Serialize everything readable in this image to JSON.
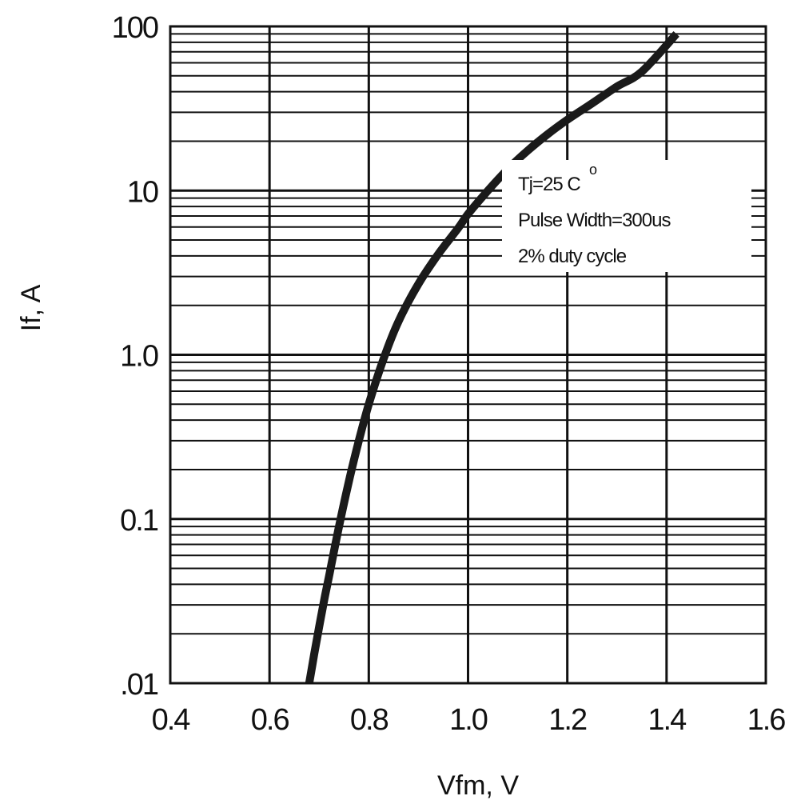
{
  "chart_data": {
    "type": "line",
    "title": "",
    "xlabel": "Vfm, V",
    "ylabel": "If, A",
    "xscale": "linear",
    "yscale": "log",
    "xlim": [
      0.4,
      1.6
    ],
    "ylim": [
      0.01,
      100
    ],
    "grid": true,
    "x_ticks": [
      0.4,
      0.6,
      0.8,
      1.0,
      1.2,
      1.4,
      1.6
    ],
    "x_tick_labels": [
      "0.4",
      "0.6",
      "0.8",
      "1.0",
      "1.2",
      "1.4",
      "1.6"
    ],
    "y_ticks": [
      0.01,
      0.1,
      1,
      10,
      100
    ],
    "y_tick_labels": [
      ".01",
      "0.1",
      "1.0",
      "10",
      "100"
    ],
    "annotation": {
      "lines": [
        "Tj=25 C",
        "Pulse Width=300us",
        "2% duty cycle"
      ],
      "degree_symbol": "o",
      "placement": "upper-right"
    },
    "series": [
      {
        "x": [
          0.68,
          0.69,
          0.7,
          0.71,
          0.72,
          0.74,
          0.76,
          0.78,
          0.8,
          0.83,
          0.86,
          0.9,
          0.94,
          0.98,
          1.0,
          1.04,
          1.08,
          1.12,
          1.16,
          1.2,
          1.25,
          1.3,
          1.35,
          1.42
        ],
        "y": [
          0.01,
          0.015,
          0.022,
          0.032,
          0.045,
          0.09,
          0.17,
          0.3,
          0.5,
          0.95,
          1.6,
          2.7,
          4.1,
          5.9,
          7.2,
          10,
          13.5,
          17.5,
          22,
          27,
          34,
          43,
          53,
          90
        ]
      }
    ]
  }
}
